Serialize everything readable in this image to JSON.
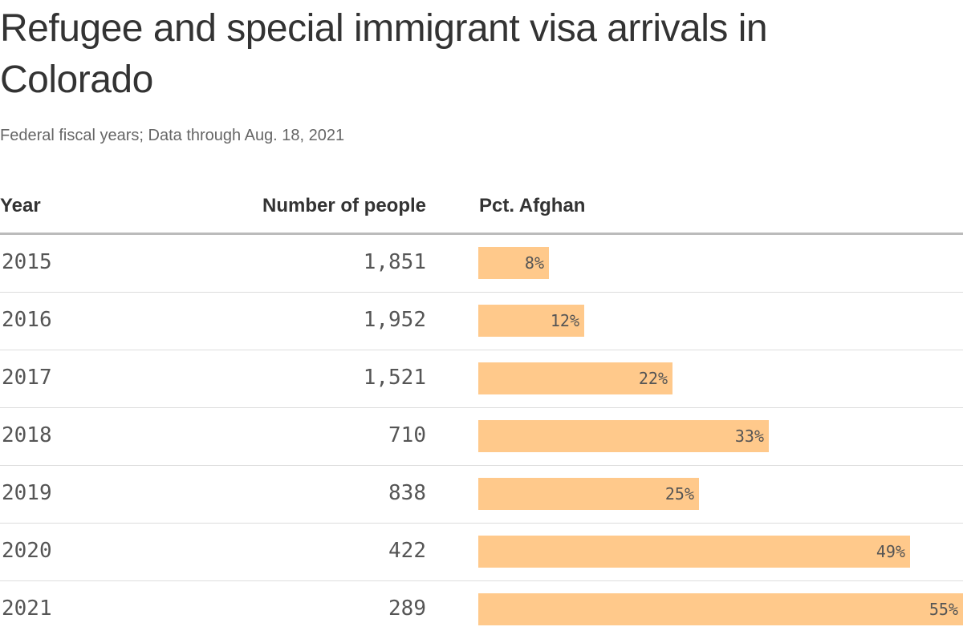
{
  "title": "Refugee and special immigrant visa arrivals in Colorado",
  "subtitle": "Federal fiscal years; Data through Aug. 18, 2021",
  "columns": {
    "year": "Year",
    "number": "Number of people",
    "pct": "Pct. Afghan"
  },
  "bar_color": "#ffc98b",
  "chart_data": {
    "type": "table",
    "title": "Refugee and special immigrant visa arrivals in Colorado",
    "subtitle": "Federal fiscal years; Data through Aug. 18, 2021",
    "columns": [
      "Year",
      "Number of people",
      "Pct. Afghan"
    ],
    "pct_max": 55,
    "rows": [
      {
        "year": "2015",
        "number": "1,851",
        "pct": 8,
        "pct_label": "8%"
      },
      {
        "year": "2016",
        "number": "1,952",
        "pct": 12,
        "pct_label": "12%"
      },
      {
        "year": "2017",
        "number": "1,521",
        "pct": 22,
        "pct_label": "22%"
      },
      {
        "year": "2018",
        "number": "710",
        "pct": 33,
        "pct_label": "33%"
      },
      {
        "year": "2019",
        "number": "838",
        "pct": 25,
        "pct_label": "25%"
      },
      {
        "year": "2020",
        "number": "422",
        "pct": 49,
        "pct_label": "49%"
      },
      {
        "year": "2021",
        "number": "289",
        "pct": 55,
        "pct_label": "55%"
      }
    ]
  }
}
